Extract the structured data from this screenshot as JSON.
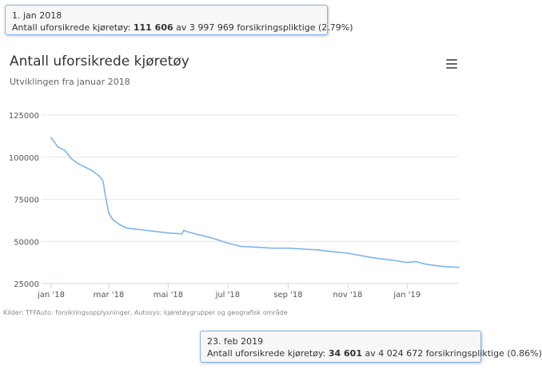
{
  "title": "Antall uforsikrede kjøretøy",
  "subtitle": "Utviklingen fra januar 2018",
  "credits": "Kilder: TFFAuto: forsikringsopplysninger, Autosys: kjøretøygrupper og geografisk område",
  "menu_icon": "hamburger-menu-icon",
  "colors": {
    "series": "#7cb5ec",
    "grid": "#e6e6e6",
    "tooltip_border": "#7cb5ec"
  },
  "tooltip_top": {
    "date": "1. jan 2018",
    "label": "Antall uforsikrede kjøretøy:",
    "value": "111 606",
    "rest": "av 3 997 969 forsikringspliktige (2.79%)"
  },
  "tooltip_bottom": {
    "date": "23. feb 2019",
    "label": "Antall uforsikrede kjøretøy:",
    "value": "34 601",
    "rest": "av 4 024 672 forsikringspliktige (0.86%)"
  },
  "chart_data": {
    "type": "line",
    "title": "Antall uforsikrede kjøretøy",
    "subtitle": "Utviklingen fra januar 2018",
    "xlabel": "",
    "ylabel": "",
    "x_range": [
      "2018-01-01",
      "2019-02-23"
    ],
    "ylim": [
      25000,
      125000
    ],
    "y_ticks": [
      {
        "value": 25000,
        "label": "25000"
      },
      {
        "value": 50000,
        "label": "50000"
      },
      {
        "value": 75000,
        "label": "75000"
      },
      {
        "value": 100000,
        "label": "100000"
      },
      {
        "value": 125000,
        "label": "125000"
      }
    ],
    "x_ticks": [
      {
        "date": "2018-01-01",
        "label": "jan '18"
      },
      {
        "date": "2018-03-01",
        "label": "mar '18"
      },
      {
        "date": "2018-05-01",
        "label": "mai '18"
      },
      {
        "date": "2018-07-01",
        "label": "jul '18"
      },
      {
        "date": "2018-09-01",
        "label": "sep '18"
      },
      {
        "date": "2018-11-01",
        "label": "nov '18"
      },
      {
        "date": "2019-01-01",
        "label": "jan '19"
      }
    ],
    "grid": true,
    "legend": "none",
    "series": [
      {
        "x": [
          "2018-01-01",
          "2018-01-08",
          "2018-01-15",
          "2018-01-22",
          "2018-01-29",
          "2018-02-05",
          "2018-02-12",
          "2018-02-19",
          "2018-02-23",
          "2018-02-26",
          "2018-03-01",
          "2018-03-05",
          "2018-03-12",
          "2018-03-19",
          "2018-03-26",
          "2018-04-02",
          "2018-04-16",
          "2018-05-01",
          "2018-05-15",
          "2018-05-17",
          "2018-05-22",
          "2018-06-01",
          "2018-06-15",
          "2018-07-01",
          "2018-07-15",
          "2018-08-01",
          "2018-08-15",
          "2018-09-01",
          "2018-09-15",
          "2018-10-01",
          "2018-10-15",
          "2018-11-01",
          "2018-11-15",
          "2018-12-01",
          "2018-12-15",
          "2019-01-01",
          "2019-01-10",
          "2019-01-20",
          "2019-02-01",
          "2019-02-10",
          "2019-02-23"
        ],
        "y": [
          111606,
          106000,
          104000,
          99000,
          96000,
          94000,
          92000,
          89000,
          86000,
          76000,
          67000,
          63000,
          60000,
          58000,
          57500,
          57000,
          56000,
          55000,
          54500,
          56500,
          55500,
          54000,
          52000,
          49000,
          47000,
          46500,
          46000,
          46000,
          45500,
          45000,
          44000,
          43000,
          41500,
          40000,
          39000,
          37500,
          38000,
          36500,
          35500,
          35000,
          34601
        ]
      }
    ]
  }
}
